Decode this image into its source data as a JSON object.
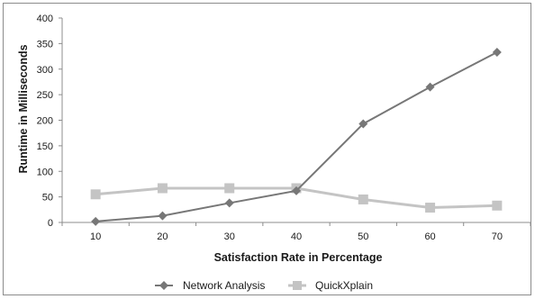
{
  "chart_data": {
    "type": "line",
    "title": "",
    "xlabel": "Satisfaction Rate in Percentage",
    "ylabel": "Runtime in Milliseconds",
    "categories": [
      "10",
      "20",
      "30",
      "40",
      "50",
      "60",
      "70"
    ],
    "y_ticks": [
      "0",
      "50",
      "100",
      "150",
      "200",
      "250",
      "300",
      "350",
      "400"
    ],
    "ylim": [
      0,
      400
    ],
    "grid": false,
    "legend_position": "bottom",
    "series": [
      {
        "name": "Network Analysis",
        "values": [
          2,
          13,
          38,
          62,
          193,
          265,
          333
        ],
        "color": "#777777",
        "marker": "diamond"
      },
      {
        "name": "QuickXplain",
        "values": [
          55,
          67,
          67,
          67,
          45,
          29,
          33
        ],
        "color": "#c4c4c4",
        "marker": "square"
      }
    ]
  }
}
